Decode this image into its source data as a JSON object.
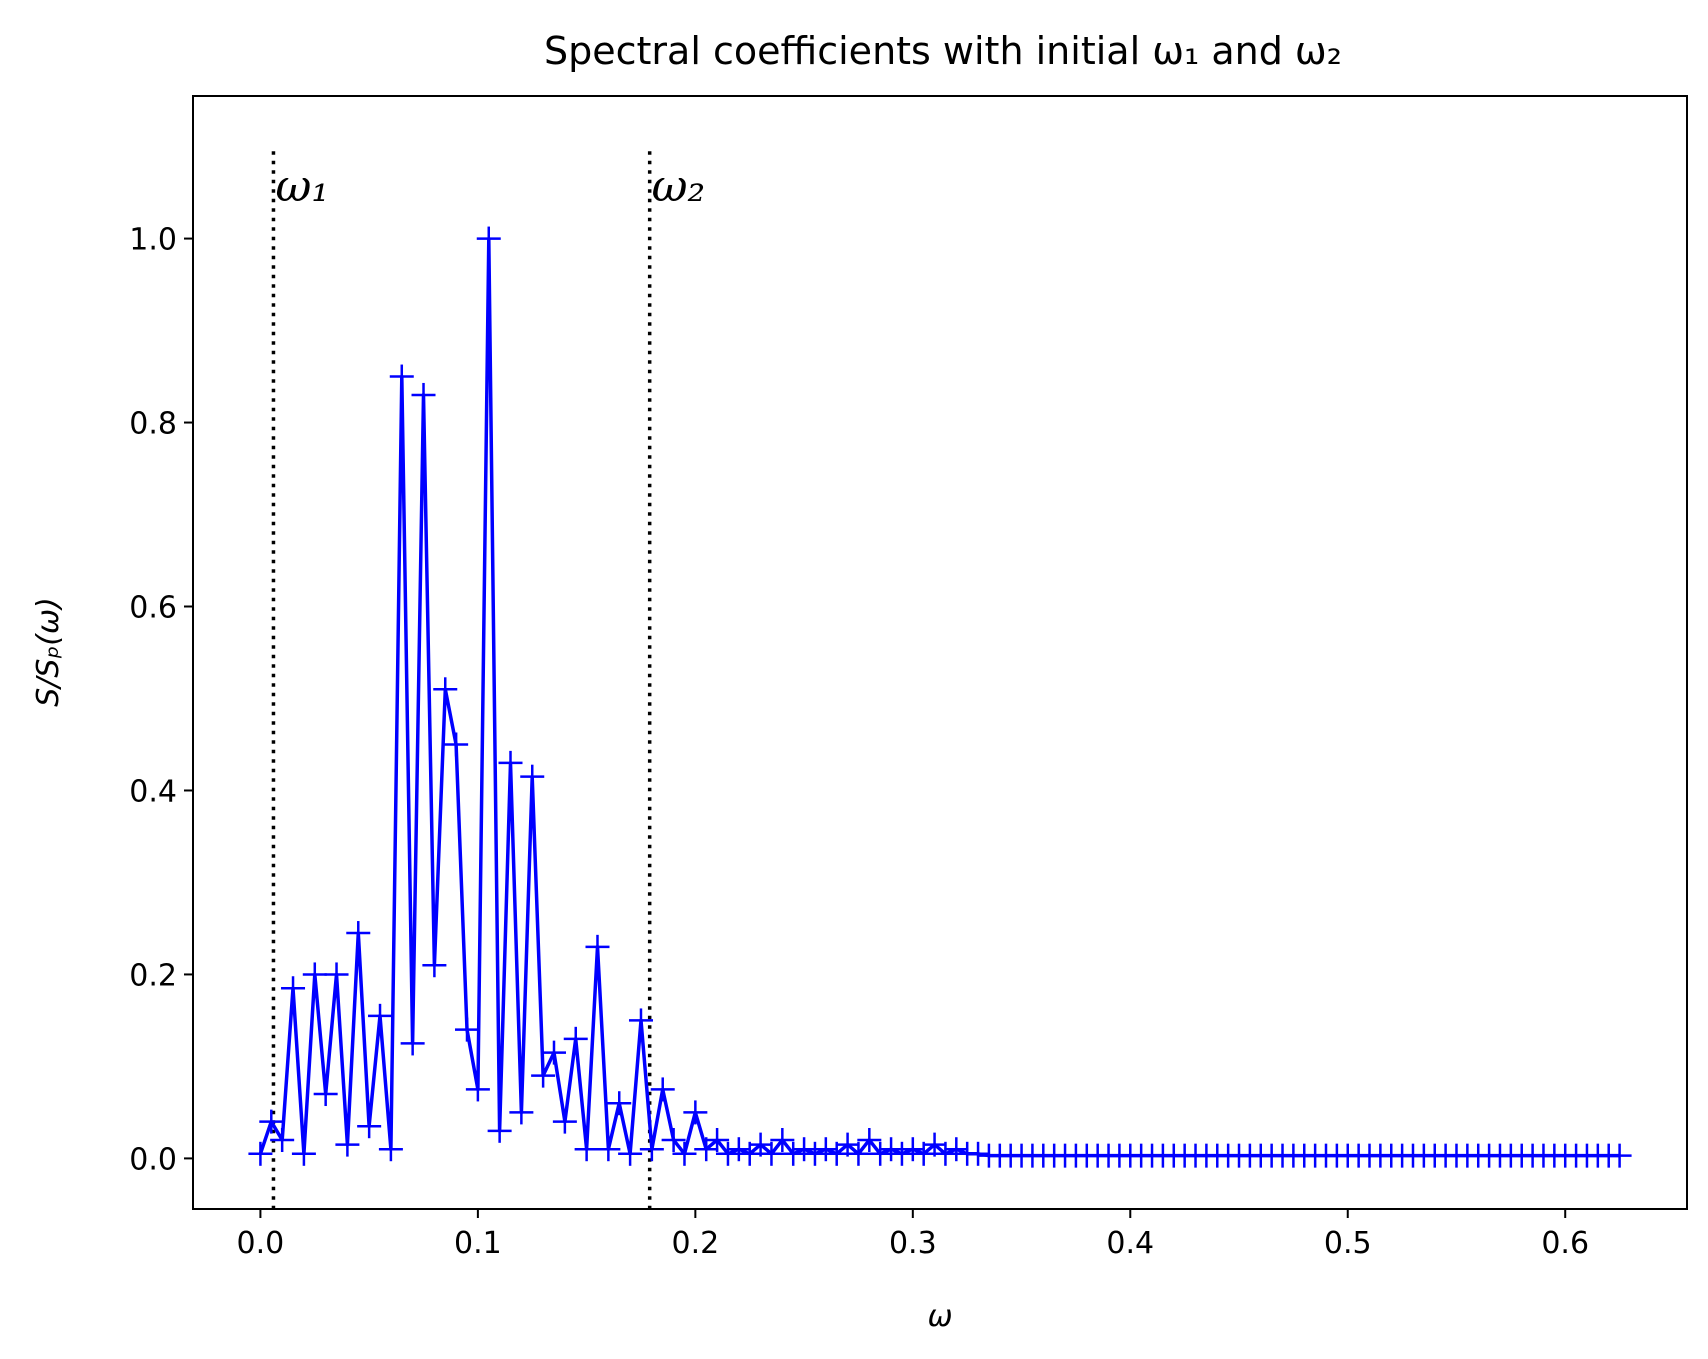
{
  "chart_data": {
    "type": "line",
    "title": "Spectral coefficients with initial ω₁ and ω₂",
    "xlabel": "ω",
    "ylabel": "S/Sₚ(ω)",
    "xlim": [
      -0.031,
      0.656
    ],
    "ylim": [
      -0.055,
      1.155
    ],
    "xticks": [
      0.0,
      0.1,
      0.2,
      0.3,
      0.4,
      0.5,
      0.6
    ],
    "xtick_labels": [
      "0.0",
      "0.1",
      "0.2",
      "0.3",
      "0.4",
      "0.5",
      "0.6"
    ],
    "yticks": [
      0.0,
      0.2,
      0.4,
      0.6,
      0.8,
      1.0
    ],
    "ytick_labels": [
      "0.0",
      "0.2",
      "0.4",
      "0.6",
      "0.8",
      "1.0"
    ],
    "grid": false,
    "marker": "+",
    "color": "#0000ff",
    "vlines": [
      {
        "x": 0.006,
        "label": "ω₁",
        "style": "dotted",
        "color": "#000000"
      },
      {
        "x": 0.179,
        "label": "ω₂",
        "style": "dotted",
        "color": "#000000"
      }
    ],
    "series": [
      {
        "x": [
          0.0,
          0.005,
          0.01,
          0.015,
          0.02,
          0.025,
          0.03,
          0.035,
          0.04,
          0.045,
          0.05,
          0.055,
          0.06,
          0.065,
          0.07,
          0.075,
          0.08,
          0.085,
          0.09,
          0.095,
          0.1,
          0.105,
          0.11,
          0.115,
          0.12,
          0.125,
          0.13,
          0.135,
          0.14,
          0.145,
          0.15,
          0.155,
          0.16,
          0.165,
          0.17,
          0.175,
          0.18,
          0.185,
          0.19,
          0.195,
          0.2,
          0.205,
          0.21,
          0.215,
          0.22,
          0.225,
          0.23,
          0.235,
          0.24,
          0.245,
          0.25,
          0.255,
          0.26,
          0.265,
          0.27,
          0.275,
          0.28,
          0.285,
          0.29,
          0.295,
          0.3,
          0.305,
          0.31,
          0.315,
          0.32,
          0.325,
          0.33,
          0.335,
          0.34,
          0.345,
          0.35,
          0.355,
          0.36,
          0.365,
          0.37,
          0.375,
          0.38,
          0.385,
          0.39,
          0.395,
          0.4,
          0.405,
          0.41,
          0.415,
          0.42,
          0.425,
          0.43,
          0.435,
          0.44,
          0.445,
          0.45,
          0.455,
          0.46,
          0.465,
          0.47,
          0.475,
          0.48,
          0.485,
          0.49,
          0.495,
          0.5,
          0.505,
          0.51,
          0.515,
          0.52,
          0.525,
          0.53,
          0.535,
          0.54,
          0.545,
          0.55,
          0.555,
          0.56,
          0.565,
          0.57,
          0.575,
          0.58,
          0.585,
          0.59,
          0.595,
          0.6,
          0.605,
          0.61,
          0.615,
          0.62,
          0.625
        ],
        "values": [
          0.005,
          0.04,
          0.02,
          0.185,
          0.005,
          0.2,
          0.07,
          0.2,
          0.015,
          0.245,
          0.035,
          0.155,
          0.01,
          0.85,
          0.125,
          0.83,
          0.21,
          0.51,
          0.45,
          0.14,
          0.075,
          1.0,
          0.03,
          0.43,
          0.05,
          0.415,
          0.09,
          0.115,
          0.04,
          0.13,
          0.01,
          0.23,
          0.01,
          0.06,
          0.005,
          0.15,
          0.01,
          0.075,
          0.02,
          0.005,
          0.05,
          0.01,
          0.02,
          0.005,
          0.01,
          0.005,
          0.015,
          0.005,
          0.02,
          0.005,
          0.01,
          0.005,
          0.01,
          0.005,
          0.015,
          0.005,
          0.02,
          0.005,
          0.01,
          0.005,
          0.01,
          0.005,
          0.015,
          0.005,
          0.01,
          0.005,
          0.005,
          0.003,
          0.003,
          0.003,
          0.003,
          0.003,
          0.003,
          0.003,
          0.003,
          0.003,
          0.003,
          0.003,
          0.003,
          0.003,
          0.003,
          0.003,
          0.003,
          0.003,
          0.003,
          0.003,
          0.003,
          0.003,
          0.003,
          0.003,
          0.003,
          0.003,
          0.003,
          0.003,
          0.003,
          0.003,
          0.003,
          0.003,
          0.003,
          0.003,
          0.003,
          0.003,
          0.003,
          0.003,
          0.003,
          0.003,
          0.003,
          0.003,
          0.003,
          0.003,
          0.003,
          0.003,
          0.003,
          0.003,
          0.003,
          0.003,
          0.003,
          0.003,
          0.003,
          0.003,
          0.003,
          0.003,
          0.003,
          0.003,
          0.003,
          0.003
        ]
      }
    ]
  }
}
